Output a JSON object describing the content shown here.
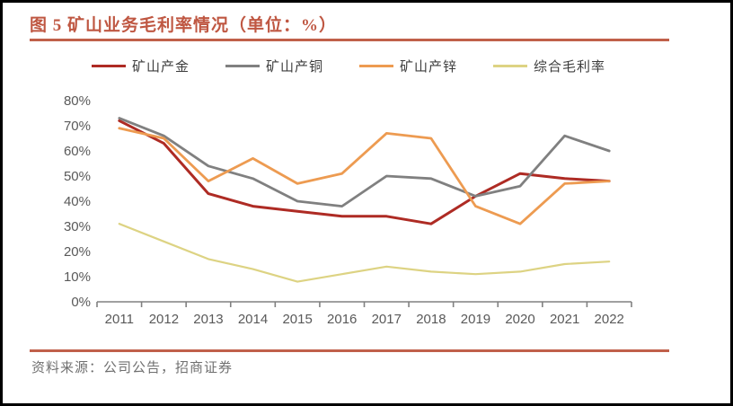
{
  "figure": {
    "title": "图 5 矿山业务毛利率情况（单位：%）",
    "source": "资料来源：公司公告，招商证券"
  },
  "colors": {
    "accent_rule": "#c0604a",
    "title_text": "#bf5742",
    "axis_line": "#808080",
    "axis_text": "#595959",
    "source_text": "#707070"
  },
  "chart_data": {
    "type": "line",
    "title": "图 5 矿山业务毛利率情况（单位：%）",
    "categories": [
      "2011",
      "2012",
      "2013",
      "2014",
      "2015",
      "2016",
      "2017",
      "2018",
      "2019",
      "2020",
      "2021",
      "2022"
    ],
    "series": [
      {
        "key": "gold",
        "name": "矿山产金",
        "color": "#ae2b24",
        "width": 3,
        "values": [
          72,
          63,
          43,
          38,
          36,
          34,
          34,
          31,
          42,
          51,
          49,
          48
        ]
      },
      {
        "key": "copper",
        "name": "矿山产铜",
        "color": "#808080",
        "width": 2.8,
        "values": [
          73,
          66,
          54,
          49,
          40,
          38,
          50,
          49,
          42,
          46,
          66,
          60
        ]
      },
      {
        "key": "zinc",
        "name": "矿山产锌",
        "color": "#ed9b51",
        "width": 2.8,
        "values": [
          69,
          65,
          48,
          57,
          47,
          51,
          67,
          65,
          38,
          31,
          47,
          48
        ]
      },
      {
        "key": "composite",
        "name": "综合毛利率",
        "color": "#ddd383",
        "width": 2.2,
        "values": [
          31,
          24,
          17,
          13,
          8,
          11,
          14,
          12,
          11,
          12,
          15,
          16
        ]
      }
    ],
    "xlabel": "",
    "ylabel": "",
    "ylim": [
      0,
      80
    ],
    "ytick_step": 10,
    "ytick_suffix": "%",
    "grid": false,
    "legend_position": "top"
  }
}
